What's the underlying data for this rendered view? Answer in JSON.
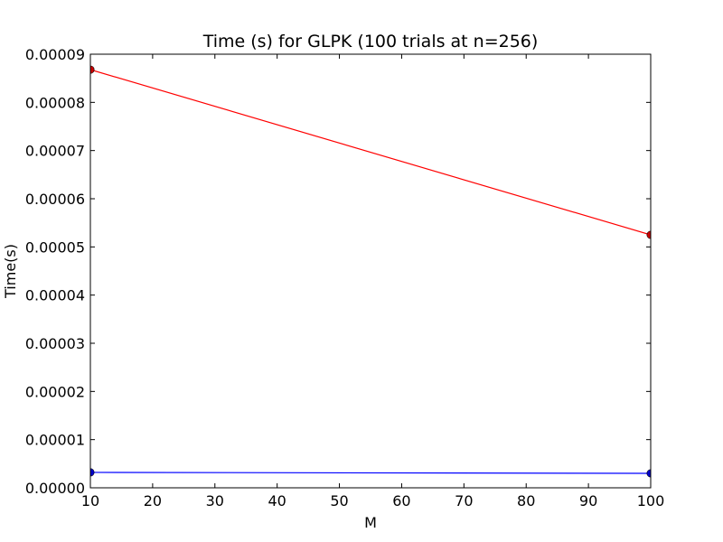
{
  "chart_data": {
    "type": "line",
    "title": "Time (s) for GLPK (100 trials at n=256)",
    "xlabel": "M",
    "ylabel": "Time(s)",
    "xlim": [
      10,
      100
    ],
    "ylim": [
      0,
      9e-05
    ],
    "x_ticks": [
      10,
      20,
      30,
      40,
      50,
      60,
      70,
      80,
      90,
      100
    ],
    "x_tick_labels": [
      "10",
      "20",
      "30",
      "40",
      "50",
      "60",
      "70",
      "80",
      "90",
      "100"
    ],
    "y_ticks": [
      0,
      1e-05,
      2e-05,
      3e-05,
      4e-05,
      5e-05,
      6e-05,
      7e-05,
      8e-05,
      9e-05
    ],
    "y_tick_labels": [
      "0.00000",
      "0.00001",
      "0.00002",
      "0.00003",
      "0.00004",
      "0.00005",
      "0.00006",
      "0.00007",
      "0.00008",
      "0.00009"
    ],
    "grid": false,
    "series": [
      {
        "color": "#ff0000",
        "marker_fill": "#cc0000",
        "points": [
          [
            10,
            8.68e-05
          ],
          [
            100,
            5.25e-05
          ]
        ]
      },
      {
        "color": "#0000ff",
        "marker_fill": "#0000cc",
        "points": [
          [
            10,
            3.2e-06
          ],
          [
            100,
            3e-06
          ]
        ]
      }
    ]
  }
}
